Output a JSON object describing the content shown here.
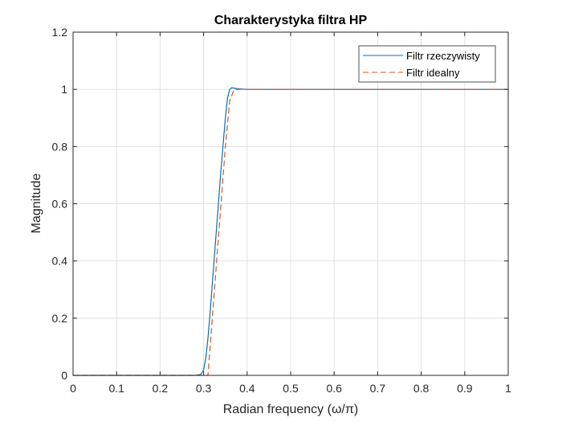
{
  "chart_data": {
    "type": "line",
    "title": "Charakterystyka filtra HP",
    "xlabel": "Radian frequency (ω/π)",
    "ylabel": "Magnitude",
    "xlim": [
      0,
      1
    ],
    "ylim": [
      0,
      1.2
    ],
    "xticks": [
      0,
      0.1,
      0.2,
      0.3,
      0.4,
      0.5,
      0.6,
      0.7,
      0.8,
      0.9,
      1
    ],
    "yticks": [
      0,
      0.2,
      0.4,
      0.6,
      0.8,
      1,
      1.2
    ],
    "grid": true,
    "legend_position": "top-right",
    "series": [
      {
        "name": "Filtr rzeczywisty",
        "color": "#0072BD",
        "dash": "solid",
        "x": [
          0,
          0.28,
          0.29,
          0.295,
          0.3,
          0.305,
          0.31,
          0.315,
          0.32,
          0.33,
          0.34,
          0.35,
          0.355,
          0.36,
          0.365,
          0.37,
          0.38,
          0.39,
          0.4,
          0.45,
          0.5,
          0.6,
          0.7,
          0.8,
          0.9,
          1.0
        ],
        "y": [
          0,
          0,
          0.002,
          0.006,
          0.02,
          0.06,
          0.13,
          0.22,
          0.32,
          0.52,
          0.72,
          0.9,
          0.97,
          1.0,
          1.006,
          1.004,
          1.002,
          1.001,
          1.0,
          1.0,
          1.0,
          1.0,
          1.0,
          1.0,
          1.0,
          1.0
        ]
      },
      {
        "name": "Filtr idealny",
        "color": "#D95319",
        "dash": "dashed",
        "x": [
          0,
          0.3,
          0.31,
          0.32,
          0.33,
          0.34,
          0.35,
          0.36,
          0.37,
          0.38,
          0.4,
          0.5,
          0.6,
          0.7,
          0.8,
          0.9,
          1.0
        ],
        "y": [
          0,
          0,
          0,
          0.2,
          0.4,
          0.6,
          0.8,
          0.96,
          1.0,
          1.0,
          1.0,
          1.0,
          1.0,
          1.0,
          1.0,
          1.0,
          1.0
        ]
      }
    ]
  }
}
